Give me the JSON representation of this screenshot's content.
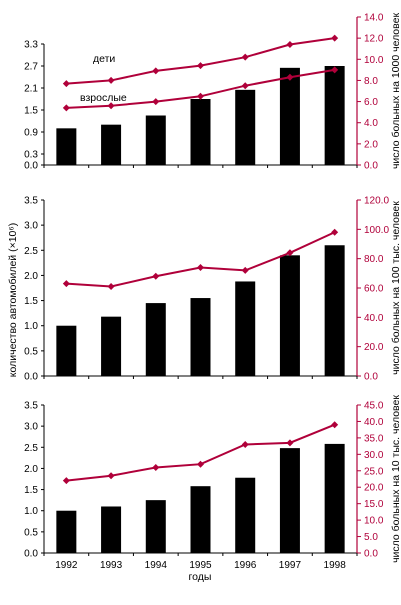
{
  "chart_data": [
    {
      "type": "bar+line",
      "categories": [
        "1992",
        "1993",
        "1994",
        "1995",
        "1996",
        "1997",
        "1998"
      ],
      "bars": {
        "values": [
          1.0,
          1.1,
          1.35,
          1.8,
          2.05,
          2.65,
          2.7
        ]
      },
      "lines": [
        {
          "name": "дети",
          "values": [
            7.7,
            8.0,
            8.9,
            9.4,
            10.2,
            11.4,
            12.0
          ]
        },
        {
          "name": "взрослые",
          "values": [
            5.4,
            5.6,
            6.0,
            6.5,
            7.5,
            8.3,
            9.0
          ]
        }
      ],
      "left_ticks": [
        "0.0",
        "0.3",
        "0.9",
        "1.5",
        "2.1",
        "2.7",
        "3.3"
      ],
      "left_ylim": [
        0,
        3.3
      ],
      "right_ticks": [
        "0.0",
        "2.0",
        "4.0",
        "6.0",
        "8.0",
        "10.0",
        "12.0",
        "14.0"
      ],
      "right_ylim": [
        0,
        14
      ],
      "right_ylabel": "число больных на 1000 человек"
    },
    {
      "type": "bar+line",
      "categories": [
        "1992",
        "1993",
        "1994",
        "1995",
        "1996",
        "1997",
        "1998"
      ],
      "bars": {
        "values": [
          1.0,
          1.18,
          1.45,
          1.55,
          1.88,
          2.4,
          2.6
        ]
      },
      "lines": [
        {
          "name": "",
          "values": [
            63,
            61,
            68,
            74,
            72,
            84,
            98
          ]
        }
      ],
      "left_ticks": [
        "0.0",
        "0.5",
        "1.0",
        "1.5",
        "2.0",
        "2.5",
        "3.0",
        "3.5"
      ],
      "left_ylim": [
        0,
        3.5
      ],
      "right_ticks": [
        "0.0",
        "20.0",
        "40.0",
        "60.0",
        "80.0",
        "100.0",
        "120.0"
      ],
      "right_ylim": [
        0,
        120
      ],
      "left_ylabel": "количество автомобилей (×10⁶)",
      "right_ylabel": "число больных на 100 тыс. человек"
    },
    {
      "type": "bar+line",
      "categories": [
        "1992",
        "1993",
        "1994",
        "1995",
        "1996",
        "1997",
        "1998"
      ],
      "bars": {
        "values": [
          1.0,
          1.1,
          1.25,
          1.58,
          1.78,
          2.48,
          2.58
        ]
      },
      "lines": [
        {
          "name": "",
          "values": [
            22,
            23.5,
            26,
            27,
            33,
            33.5,
            39
          ]
        }
      ],
      "left_ticks": [
        "0.0",
        "0.5",
        "1.0",
        "1.5",
        "2.0",
        "2.5",
        "3.0",
        "3.5"
      ],
      "left_ylim": [
        0,
        3.5
      ],
      "right_ticks": [
        "0.0",
        "5.0",
        "10.0",
        "15.0",
        "20.0",
        "25.0",
        "30.0",
        "35.0",
        "40.0",
        "45.0"
      ],
      "right_ylim": [
        0,
        45
      ],
      "right_ylabel": "число больных на 10 тыс. человек",
      "xlabel": "годы"
    }
  ],
  "annotations": {
    "children": "дети",
    "adults": "взрослые"
  },
  "colors": {
    "bar": "#000000",
    "line": "#b0003a",
    "axis_right": "#b0003a"
  }
}
